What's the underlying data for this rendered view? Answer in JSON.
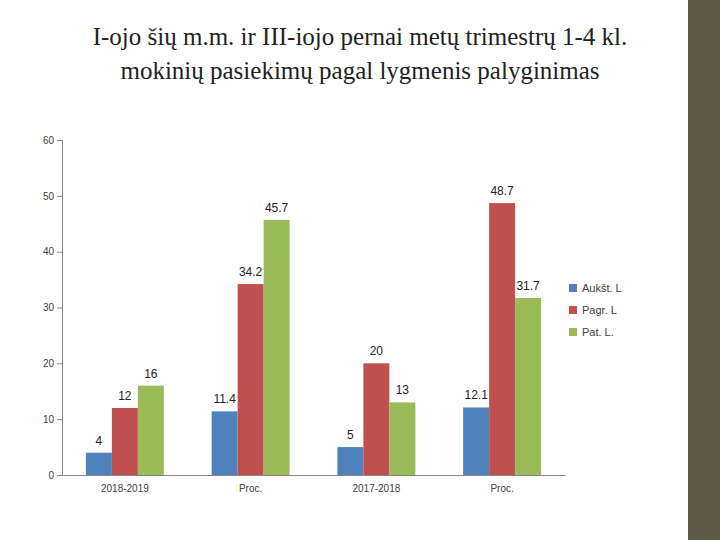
{
  "chart_data": {
    "type": "bar",
    "title": "I-ojo šių m.m. ir III-iojo pernai metų trimestrų 1-4 kl. mokinių pasiekimų pagal lygmenis palyginimas",
    "categories": [
      "2018-2019",
      "Proc.",
      "2017-2018",
      "Proc."
    ],
    "series": [
      {
        "name": "Aukšt. L",
        "color": "#4f81bd",
        "values": [
          4,
          11.4,
          5,
          12.1
        ]
      },
      {
        "name": "Pagr. L",
        "color": "#c0504d",
        "values": [
          12,
          34.2,
          20,
          48.7
        ]
      },
      {
        "name": "Pat. L.",
        "color": "#9bbb59",
        "values": [
          16,
          45.7,
          13,
          31.7
        ]
      }
    ],
    "ylim": [
      0,
      60
    ],
    "yticks": [
      0,
      10,
      20,
      30,
      40,
      50,
      60
    ],
    "grid": false,
    "legend": "right",
    "data_labels": true
  }
}
